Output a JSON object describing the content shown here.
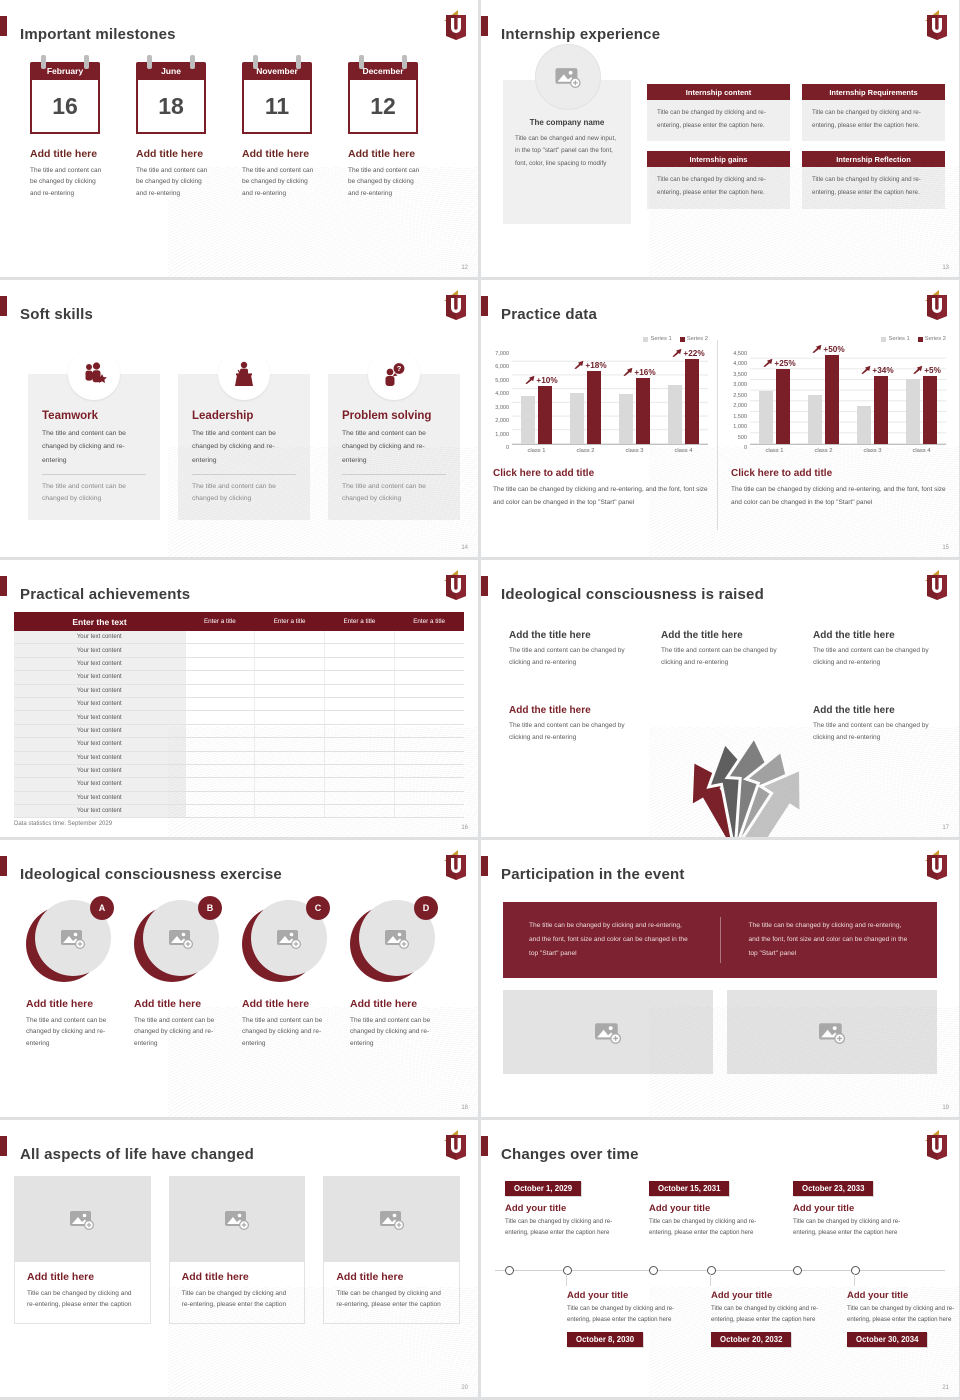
{
  "theme": {
    "maroon": "#7a1f28",
    "maroon_dark": "#70141f",
    "gold": "#c99b2f",
    "gray_card": "#f0f0f0",
    "series1": "#d9d9d9"
  },
  "chart_data": [
    {
      "type": "bar",
      "title": "Click here to add title",
      "categories": [
        "class 1",
        "class 2",
        "class 3",
        "class 4"
      ],
      "series": [
        {
          "name": "Series 1",
          "color": "#d9d9d9",
          "values": [
            3500,
            3750,
            3650,
            4300
          ]
        },
        {
          "name": "Series 2",
          "color": "#7a1f28",
          "values": [
            4200,
            5300,
            4800,
            6200
          ]
        }
      ],
      "labels": [
        "+10%",
        "+18%",
        "+16%",
        "+22%"
      ],
      "ylim": [
        0,
        7000
      ],
      "ytick": 1000,
      "legend_position": "top-right",
      "grid": true
    },
    {
      "type": "bar",
      "title": "Click here to add title",
      "categories": [
        "class 1",
        "class 2",
        "class 3",
        "class 4"
      ],
      "series": [
        {
          "name": "Series 1",
          "color": "#d9d9d9",
          "values": [
            2500,
            2300,
            1800,
            3050
          ]
        },
        {
          "name": "Series 2",
          "color": "#7a1f28",
          "values": [
            3500,
            4150,
            3200,
            3200
          ]
        }
      ],
      "labels": [
        "+25%",
        "+50%",
        "+34%",
        "+5%"
      ],
      "ylim": [
        0,
        4500
      ],
      "ytick": 500,
      "legend_position": "top-right",
      "grid": true
    }
  ],
  "slides": {
    "milestones": {
      "page": "12",
      "title": "Important milestones",
      "item_title": "Add title here",
      "item_body": "The title and content can be changed by clicking and re-entering",
      "calendars": [
        {
          "month": "February",
          "day": "16"
        },
        {
          "month": "June",
          "day": "18"
        },
        {
          "month": "November",
          "day": "11"
        },
        {
          "month": "December",
          "day": "12"
        }
      ]
    },
    "internship": {
      "page": "13",
      "title": "Internship experience",
      "company_title": "The company name",
      "company_body": "Title can be changed and new input, in the top \"start\" panel can the font, font, color, line spacing to modify",
      "box_body": "Title can be changed by clicking and re-entering, please enter the caption here.",
      "boxes": [
        "Internship content",
        "Internship Requirements",
        "Internship gains",
        "Internship Reflection"
      ]
    },
    "softskills": {
      "page": "14",
      "title": "Soft skills",
      "body1": "The title and content can be changed by clicking and re-entering",
      "body2": "The title and content can be changed by clicking",
      "skills": [
        "Teamwork",
        "Leadership",
        "Problem solving"
      ]
    },
    "practice": {
      "page": "15",
      "title": "Practice data",
      "panel_title": "Click here to add title",
      "panel_caption": "The title can be changed by clicking and re-entering, and the font, font size and color can be changed in the top \"Start\" panel"
    },
    "achievements": {
      "page": "16",
      "title": "Practical achievements",
      "header": [
        "Enter the text",
        "Enter a title",
        "Enter a title",
        "Enter a title",
        "Enter a title"
      ],
      "rows": [
        "Your text content",
        "Your text content",
        "Your text content",
        "Your text content",
        "Your text content",
        "Your text content",
        "Your text content",
        "Your text content",
        "Your text content",
        "Your text content",
        "Your text content",
        "Your text content",
        "Your text content",
        "Your text content"
      ],
      "footer": "Data statistics time: September 2029"
    },
    "raised": {
      "page": "17",
      "title": "Ideological consciousness is raised",
      "item_title": "Add the title here",
      "item_body": "The title and content can be changed by clicking and re-entering"
    },
    "exercise": {
      "page": "18",
      "title": "Ideological consciousness exercise",
      "letters": [
        "A",
        "B",
        "C",
        "D"
      ],
      "item_title": "Add title here",
      "item_body": "The title and content can be changed by clicking and re-entering"
    },
    "participation": {
      "page": "19",
      "title": "Participation in the event",
      "banner_text": "The title can be changed by clicking and re-entering, and the font, font size and color can be changed in the top \"Start\" panel"
    },
    "lifechanged": {
      "page": "20",
      "title": "All aspects of life have changed",
      "item_title": "Add title here",
      "item_body": "Title can be changed by clicking and re-entering, please enter the caption"
    },
    "changes": {
      "page": "21",
      "title": "Changes over time",
      "item_title": "Add your title",
      "item_body": "Title can be changed by clicking and re-entering, please enter the caption here",
      "dates_top": [
        "October 1, 2029",
        "October 15, 2031",
        "October 23, 2033"
      ],
      "dates_bottom": [
        "October 8, 2030",
        "October 20, 2032",
        "October 30, 2034"
      ]
    }
  }
}
